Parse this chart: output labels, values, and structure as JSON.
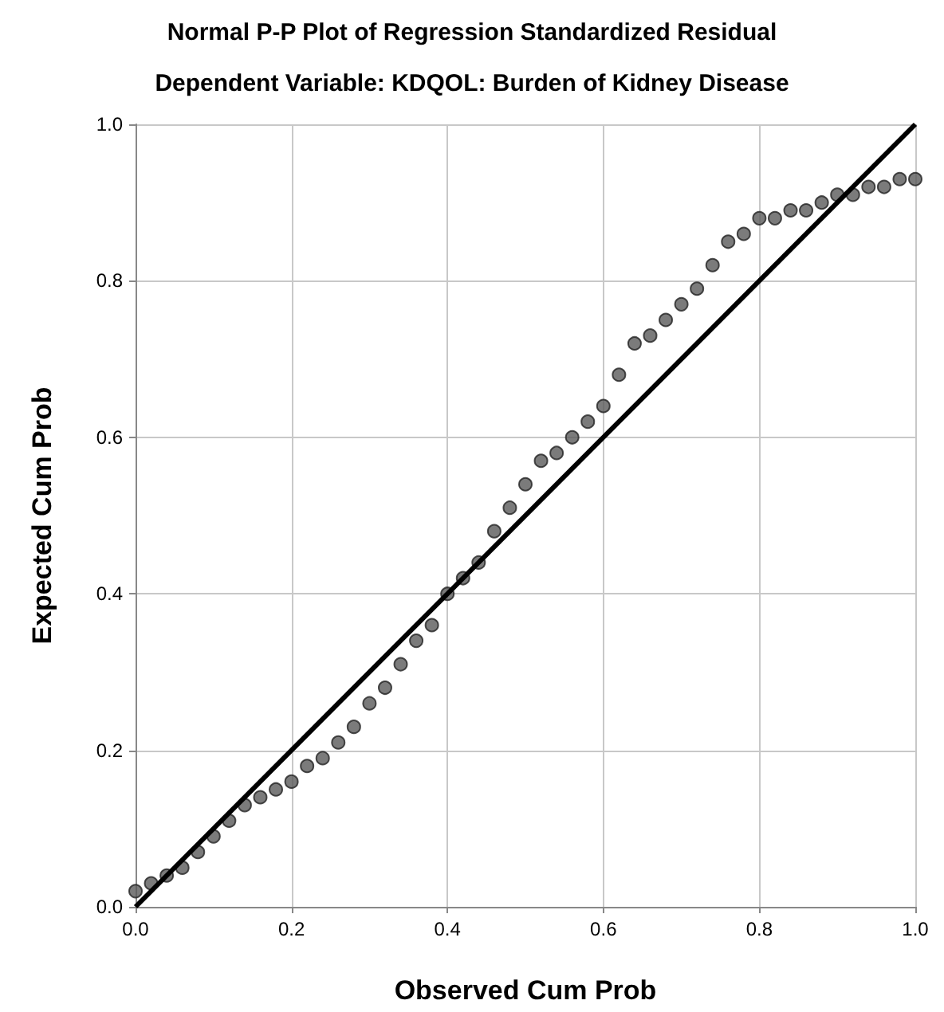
{
  "chart_data": {
    "type": "scatter",
    "title": "Normal P-P Plot of Regression Standardized Residual",
    "subtitle": "Dependent Variable: KDQOL: Burden of Kidney Disease",
    "xlabel": "Observed Cum Prob",
    "ylabel": "Expected Cum Prob",
    "xlim": [
      0,
      1
    ],
    "ylim": [
      0,
      1
    ],
    "xticks": [
      {
        "value": 0,
        "label": "0.0"
      },
      {
        "value": 0.2,
        "label": "0.2"
      },
      {
        "value": 0.4,
        "label": "0.4"
      },
      {
        "value": 0.6,
        "label": "0.6"
      },
      {
        "value": 0.8,
        "label": "0.8"
      },
      {
        "value": 1,
        "label": "1.0"
      }
    ],
    "yticks": [
      {
        "value": 0,
        "label": "0.0"
      },
      {
        "value": 0.2,
        "label": "0.2"
      },
      {
        "value": 0.4,
        "label": "0.4"
      },
      {
        "value": 0.6,
        "label": "0.6"
      },
      {
        "value": 0.8,
        "label": "0.8"
      },
      {
        "value": 1,
        "label": "1.0"
      }
    ],
    "grid": true,
    "series": [
      {
        "marker": "circle",
        "color": "#5a5a5a",
        "x": [
          0.0,
          0.02,
          0.04,
          0.06,
          0.08,
          0.1,
          0.12,
          0.14,
          0.16,
          0.18,
          0.2,
          0.22,
          0.24,
          0.26,
          0.28,
          0.3,
          0.32,
          0.34,
          0.36,
          0.38,
          0.4,
          0.42,
          0.44,
          0.46,
          0.48,
          0.5,
          0.52,
          0.54,
          0.56,
          0.58,
          0.6,
          0.62,
          0.64,
          0.66,
          0.68,
          0.7,
          0.72,
          0.74,
          0.76,
          0.78,
          0.8,
          0.82,
          0.84,
          0.86,
          0.88,
          0.9,
          0.92,
          0.94,
          0.96,
          0.98,
          1.0
        ],
        "values": [
          0.02,
          0.03,
          0.04,
          0.05,
          0.07,
          0.09,
          0.11,
          0.13,
          0.14,
          0.15,
          0.16,
          0.18,
          0.19,
          0.21,
          0.23,
          0.26,
          0.28,
          0.31,
          0.34,
          0.36,
          0.4,
          0.42,
          0.44,
          0.48,
          0.51,
          0.54,
          0.57,
          0.58,
          0.6,
          0.62,
          0.64,
          0.68,
          0.72,
          0.73,
          0.75,
          0.77,
          0.79,
          0.82,
          0.85,
          0.86,
          0.88,
          0.88,
          0.89,
          0.89,
          0.9,
          0.91,
          0.91,
          0.92,
          0.92,
          0.93,
          0.93
        ]
      },
      {
        "type": "line",
        "marker": "none",
        "color": "#000000",
        "x": [
          0,
          1
        ],
        "values": [
          0,
          1
        ]
      }
    ]
  }
}
